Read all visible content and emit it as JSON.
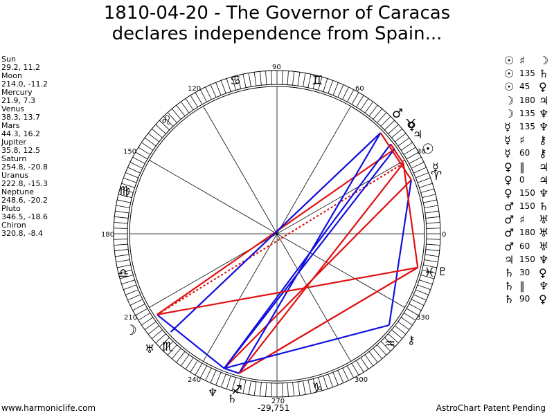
{
  "title": {
    "line1": "1810-04-20 - The Governor of Caracas",
    "line2": "declares independence from Spain..."
  },
  "positions": [
    {
      "name": "Sun",
      "value": "29.2, 11.2"
    },
    {
      "name": "Moon",
      "value": "214.0, -11.2"
    },
    {
      "name": "Mercury",
      "value": "21.9, 7.3"
    },
    {
      "name": "Venus",
      "value": "38.3, 13.7"
    },
    {
      "name": "Mars",
      "value": "44.3, 16.2"
    },
    {
      "name": "Jupiter",
      "value": "35.8, 12.5"
    },
    {
      "name": "Saturn",
      "value": "254.8, -20.8"
    },
    {
      "name": "Uranus",
      "value": "222.8, -15.3"
    },
    {
      "name": "Neptune",
      "value": "248.6, -20.2"
    },
    {
      "name": "Pluto",
      "value": "346.5, -18.6"
    },
    {
      "name": "Chiron",
      "value": "320.8, -8.4"
    }
  ],
  "degree_labels": [
    "0",
    "30",
    "60",
    "90",
    "120",
    "150",
    "180",
    "210",
    "240",
    "270",
    "300",
    "330"
  ],
  "sign_glyphs": [
    "♈",
    "♉",
    "♊",
    "♋",
    "♌",
    "♍",
    "♎",
    "♏",
    "♐",
    "♑",
    "♒",
    "♓"
  ],
  "planet_glyphs": {
    "sun": "☉",
    "moon": "☽",
    "mercury": "☿",
    "venus": "♀",
    "mars": "♂",
    "jupiter": "♃",
    "saturn": "♄",
    "uranus": "♅",
    "neptune": "♆",
    "pluto": "♇",
    "chiron": "⚷"
  },
  "aspects": [
    {
      "p1": "☉",
      "sym": "♯",
      "p2": "☽"
    },
    {
      "p1": "☉",
      "sym": "135",
      "p2": "♄"
    },
    {
      "p1": "☉",
      "sym": "45",
      "p2": "♀"
    },
    {
      "p1": "☽",
      "sym": "180",
      "p2": "♃"
    },
    {
      "p1": "☽",
      "sym": "135",
      "p2": "♆"
    },
    {
      "p1": "☿",
      "sym": "135",
      "p2": "♆"
    },
    {
      "p1": "☿",
      "sym": "♯",
      "p2": "⚷"
    },
    {
      "p1": "☿",
      "sym": "60",
      "p2": "⚷"
    },
    {
      "p1": "♀",
      "sym": "∥",
      "p2": "♃"
    },
    {
      "p1": "♀",
      "sym": "0",
      "p2": "♃"
    },
    {
      "p1": "♀",
      "sym": "150",
      "p2": "♆"
    },
    {
      "p1": "♂",
      "sym": "150",
      "p2": "♄"
    },
    {
      "p1": "♂",
      "sym": "♯",
      "p2": "♅"
    },
    {
      "p1": "♂",
      "sym": "180",
      "p2": "♅"
    },
    {
      "p1": "♂",
      "sym": "60",
      "p2": "♅"
    },
    {
      "p1": "♃",
      "sym": "150",
      "p2": "♆"
    },
    {
      "p1": "♄",
      "sym": "30",
      "p2": "♀"
    },
    {
      "p1": "♄",
      "sym": "∥",
      "p2": "♆"
    },
    {
      "p1": "♄",
      "sym": "90",
      "p2": "♀"
    }
  ],
  "colors": {
    "hard": "#e01010",
    "soft": "#1010e0",
    "ring": "#000000"
  },
  "footer": {
    "left": "www.harmoniclife.com",
    "center": "-29,751",
    "right": "AstroChart Patent Pending"
  }
}
